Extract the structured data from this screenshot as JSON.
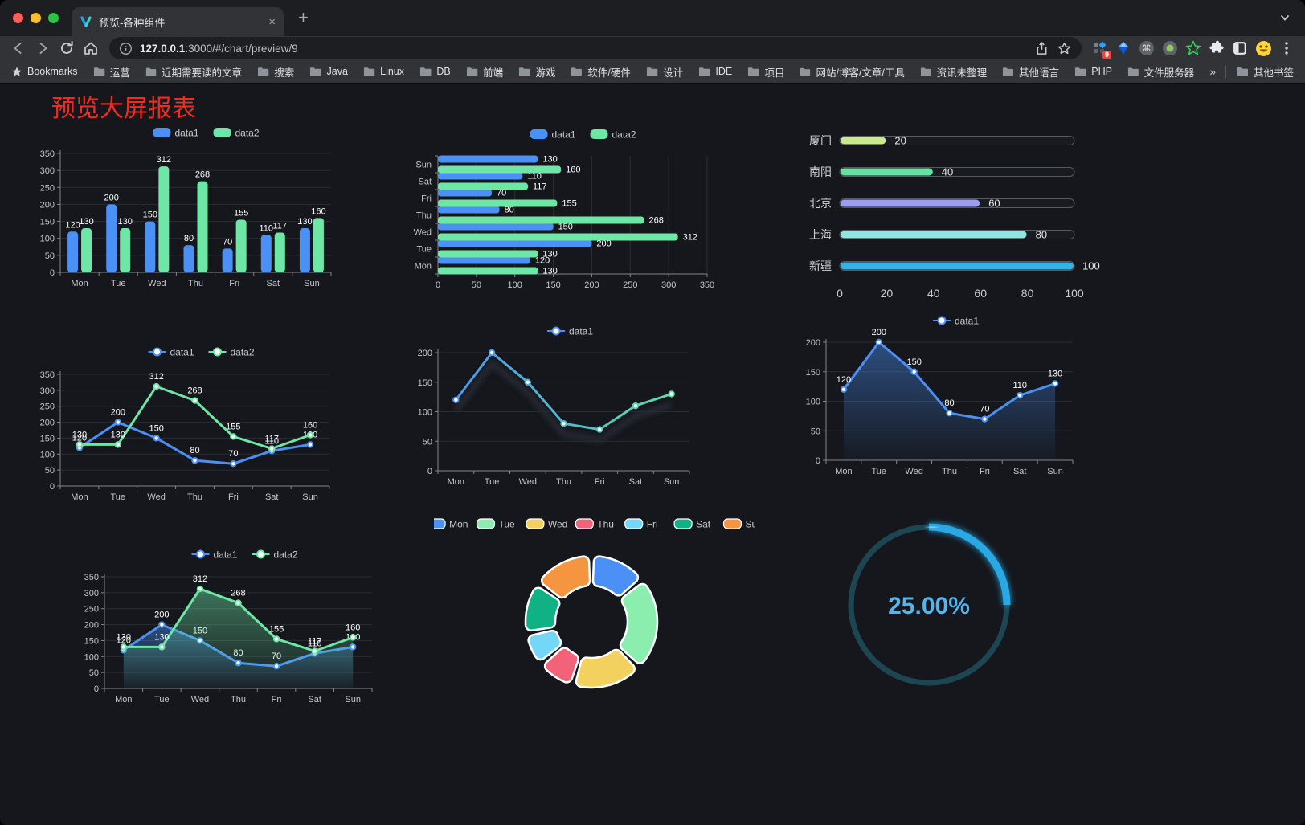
{
  "browser": {
    "tab_title": "预览-各种组件",
    "url_host": "127.0.0.1",
    "url_rest": ":3000/#/chart/preview/9",
    "bookmarks_label": "Bookmarks",
    "bookmarks": [
      "运营",
      "近期需要读的文章",
      "搜索",
      "Java",
      "Linux",
      "DB",
      "前端",
      "游戏",
      "软件/硬件",
      "设计",
      "IDE",
      "项目",
      "网站/博客/文章/工具",
      "资讯未整理",
      "其他语言",
      "PHP",
      "文件服务器"
    ],
    "overflow_label": "»",
    "other_bookmarks": "其他书签",
    "ext_badge": "9"
  },
  "page": {
    "title": "预览大屏报表",
    "title_color": "#f5291d"
  },
  "chart_data": [
    {
      "id": "grouped-bar",
      "type": "bar",
      "categories": [
        "Mon",
        "Tue",
        "Wed",
        "Thu",
        "Fri",
        "Sat",
        "Sun"
      ],
      "series": [
        {
          "name": "data1",
          "color": "#4a90f5",
          "values": [
            120,
            200,
            150,
            80,
            70,
            110,
            130
          ]
        },
        {
          "name": "data2",
          "color": "#6ee7a6",
          "values": [
            130,
            130,
            312,
            268,
            155,
            117,
            160
          ]
        }
      ],
      "ylim": [
        0,
        350
      ],
      "ytick": 50,
      "labels": true,
      "legend_position": "top",
      "grid": true
    },
    {
      "id": "horizontal-bar",
      "type": "bar-horizontal",
      "categories": [
        "Mon",
        "Tue",
        "Wed",
        "Thu",
        "Fri",
        "Sat",
        "Sun"
      ],
      "series": [
        {
          "name": "data1",
          "color": "#4a90f5",
          "values": [
            120,
            200,
            150,
            80,
            70,
            110,
            130
          ]
        },
        {
          "name": "data2",
          "color": "#6ee7a6",
          "values": [
            130,
            130,
            312,
            268,
            155,
            117,
            160
          ]
        }
      ],
      "xlim": [
        0,
        350
      ],
      "xtick": 50,
      "labels": true,
      "legend_position": "top",
      "grid": true
    },
    {
      "id": "progress-bars",
      "type": "progress-bars",
      "xlim": [
        0,
        100
      ],
      "xticks": [
        0,
        20,
        40,
        60,
        80,
        100
      ],
      "items": [
        {
          "label": "厦门",
          "value": 20,
          "color": "#c9e88f"
        },
        {
          "label": "南阳",
          "value": 40,
          "color": "#63e2a4"
        },
        {
          "label": "北京",
          "value": 60,
          "color": "#9d9bf2"
        },
        {
          "label": "上海",
          "value": 80,
          "color": "#8fe5e2"
        },
        {
          "label": "新疆",
          "value": 100,
          "color": "#32b3e6"
        }
      ]
    },
    {
      "id": "line-dual",
      "type": "line",
      "categories": [
        "Mon",
        "Tue",
        "Wed",
        "Thu",
        "Fri",
        "Sat",
        "Sun"
      ],
      "series": [
        {
          "name": "data1",
          "color": "#4a90f5",
          "values": [
            120,
            200,
            150,
            80,
            70,
            110,
            130
          ]
        },
        {
          "name": "data2",
          "color": "#6ee7a6",
          "values": [
            130,
            130,
            312,
            268,
            155,
            117,
            160
          ]
        }
      ],
      "ylim": [
        0,
        350
      ],
      "ytick": 50,
      "labels": true,
      "legend_position": "top",
      "grid": true
    },
    {
      "id": "line-gradient",
      "type": "line",
      "categories": [
        "Mon",
        "Tue",
        "Wed",
        "Thu",
        "Fri",
        "Sat",
        "Sun"
      ],
      "series": [
        {
          "name": "data1",
          "gradient": [
            "#4a90f5",
            "#5fe3a1"
          ],
          "values": [
            120,
            200,
            150,
            80,
            70,
            110,
            130
          ]
        }
      ],
      "ylim": [
        0,
        200
      ],
      "ytick": 50,
      "labels": false,
      "shadow": true,
      "legend_position": "top",
      "grid": true
    },
    {
      "id": "area-single",
      "type": "line",
      "categories": [
        "Mon",
        "Tue",
        "Wed",
        "Thu",
        "Fri",
        "Sat",
        "Sun"
      ],
      "series": [
        {
          "name": "data1",
          "color": "#4a90f5",
          "values": [
            120,
            200,
            150,
            80,
            70,
            110,
            130
          ],
          "area": true
        }
      ],
      "ylim": [
        0,
        200
      ],
      "ytick": 50,
      "labels": true,
      "legend_position": "top",
      "grid": true
    },
    {
      "id": "area-dual",
      "type": "line",
      "categories": [
        "Mon",
        "Tue",
        "Wed",
        "Thu",
        "Fri",
        "Sat",
        "Sun"
      ],
      "series": [
        {
          "name": "data1",
          "color": "#4a90f5",
          "values": [
            120,
            200,
            150,
            80,
            70,
            110,
            130
          ],
          "area": true
        },
        {
          "name": "data2",
          "color": "#6ee7a6",
          "values": [
            130,
            130,
            312,
            268,
            155,
            117,
            160
          ],
          "area": true
        }
      ],
      "ylim": [
        0,
        350
      ],
      "ytick": 50,
      "labels": true,
      "legend_position": "top",
      "grid": true
    },
    {
      "id": "donut",
      "type": "pie",
      "legend_position": "top",
      "items": [
        {
          "label": "Mon",
          "value": 120,
          "color": "#4a90f5"
        },
        {
          "label": "Tue",
          "value": 200,
          "color": "#8bedae"
        },
        {
          "label": "Wed",
          "value": 150,
          "color": "#f3d15e"
        },
        {
          "label": "Thu",
          "value": 80,
          "color": "#f2637a"
        },
        {
          "label": "Fri",
          "value": 70,
          "color": "#74d7f7"
        },
        {
          "label": "Sat",
          "value": 110,
          "color": "#10b184"
        },
        {
          "label": "Sun",
          "value": 130,
          "color": "#f6953f"
        }
      ]
    },
    {
      "id": "gauge",
      "type": "gauge",
      "value": 25,
      "text": "25.00%",
      "color": "#28a9e6",
      "track_color": "#1d4653",
      "text_color": "#55b5ea"
    }
  ]
}
